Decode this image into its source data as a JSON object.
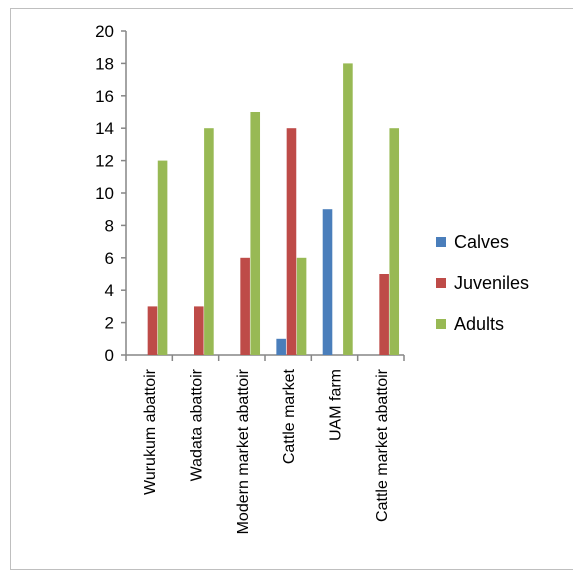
{
  "chart_data": {
    "type": "bar",
    "title": "",
    "xlabel": "",
    "ylabel": "",
    "ylim": [
      0,
      20
    ],
    "yticks": [
      0,
      2,
      4,
      6,
      8,
      10,
      12,
      14,
      16,
      18,
      20
    ],
    "grid": false,
    "legend_position": "right",
    "categories": [
      "Wurukum abattoir",
      "Wadata abattoir",
      "Modern market abattoir",
      "Cattle market",
      "UAM farm",
      "Cattle market abattoir"
    ],
    "series": [
      {
        "name": "Calves",
        "color": "#4a7ebb",
        "values": [
          0,
          0,
          0,
          1,
          9,
          0
        ]
      },
      {
        "name": "Juveniles",
        "color": "#be4b48",
        "values": [
          3,
          3,
          6,
          14,
          0,
          5
        ]
      },
      {
        "name": "Adults",
        "color": "#98b954",
        "values": [
          12,
          14,
          15,
          6,
          18,
          14
        ]
      }
    ]
  }
}
